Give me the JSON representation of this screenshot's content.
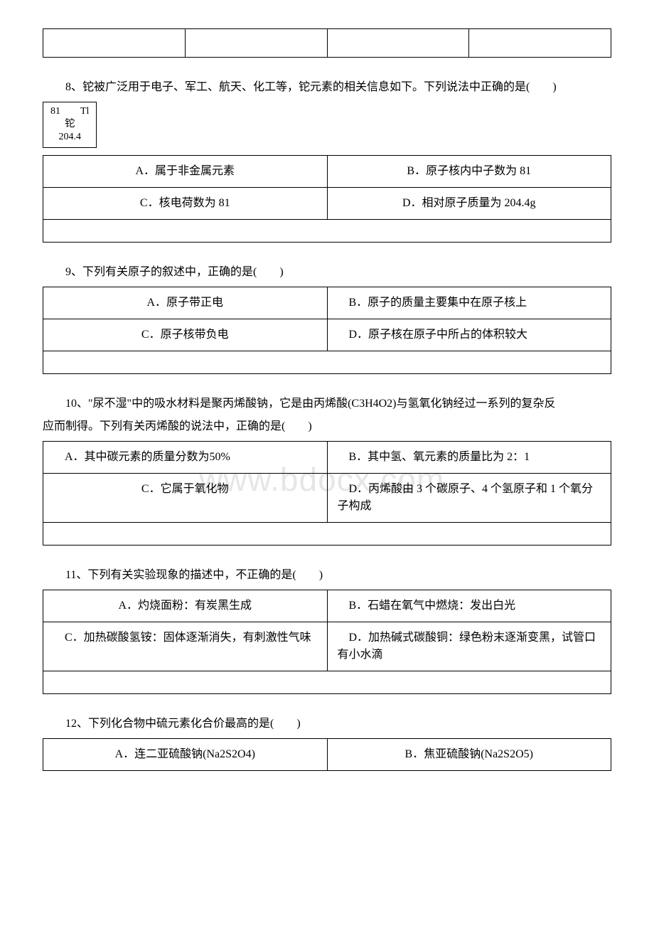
{
  "watermark": "www.bdocx.com",
  "q8": {
    "prompt_a": "8、铊被广泛用于电子、军工、航天、化工等，铊元素的相关信息如下。下列说法中正确的是(　　)",
    "element_top": "81　　Tl",
    "element_mid": "铊",
    "element_bot": "204.4",
    "a": "A．属于非金属元素",
    "b": "B．原子核内中子数为 81",
    "c": "C．核电荷数为 81",
    "d": "D．相对原子质量为 204.4g"
  },
  "q9": {
    "prompt": "9、下列有关原子的叙述中，正确的是(　　)",
    "a": "A．原子带正电",
    "b": "　B．原子的质量主要集中在原子核上",
    "c": "C．原子核带负电",
    "d": "　D．原子核在原子中所占的体积较大"
  },
  "q10": {
    "prompt_a": "10、\"尿不湿\"中的吸水材料是聚丙烯酸钠，它是由丙烯酸(C3H4O2)与氢氧化钠经过一系列的复杂反",
    "prompt_b": "应而制得。下列有关丙烯酸的说法中，正确的是(　　)",
    "a": "　A．其中碳元素的质量分数为50%",
    "b": "　B．其中氢、氧元素的质量比为 2：1",
    "c": "C．它属于氧化物",
    "d": "　D．丙烯酸由 3 个碳原子、4 个氢原子和 1 个氧分子构成"
  },
  "q11": {
    "prompt": "11、下列有关实验现象的描述中，不正确的是(　　)",
    "a": "A．灼烧面粉：有炭黑生成",
    "b": "　B．石蜡在氧气中燃烧：发出白光",
    "c": "　C．加热碳酸氢铵：固体逐渐消失，有刺激性气味",
    "d": "　D．加热碱式碳酸铜：绿色粉末逐渐变黑，试管口有小水滴"
  },
  "q12": {
    "prompt": "12、下列化合物中硫元素化合价最高的是(　　)",
    "a": "A．连二亚硫酸钠(Na2S2O4)",
    "b": "B．焦亚硫酸钠(Na2S2O5)"
  }
}
